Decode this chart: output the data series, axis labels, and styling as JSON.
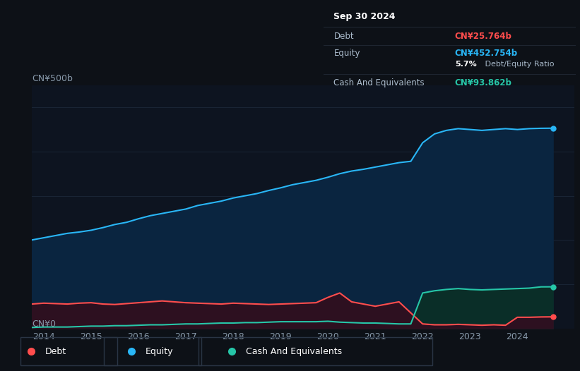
{
  "background_color": "#0d1117",
  "plot_bg_color": "#0d1420",
  "title_box": {
    "date": "Sep 30 2024",
    "debt_label": "Debt",
    "debt_value": "CN¥25.764b",
    "equity_label": "Equity",
    "equity_value": "CN¥452.754b",
    "ratio_bold": "5.7%",
    "ratio_normal": " Debt/Equity Ratio",
    "cash_label": "Cash And Equivalents",
    "cash_value": "CN¥93.862b",
    "debt_color": "#ff4d4d",
    "equity_color": "#29b6f6",
    "cash_color": "#26c6a8",
    "text_color": "#aabbcc",
    "white": "#ffffff"
  },
  "ylabel_text": "CN¥500b",
  "y0_text": "CN¥0",
  "x_ticks": [
    2014,
    2015,
    2016,
    2017,
    2018,
    2019,
    2020,
    2021,
    2022,
    2023,
    2024
  ],
  "years": [
    2013.75,
    2014.0,
    2014.25,
    2014.5,
    2014.75,
    2015.0,
    2015.25,
    2015.5,
    2015.75,
    2016.0,
    2016.25,
    2016.5,
    2016.75,
    2017.0,
    2017.25,
    2017.5,
    2017.75,
    2018.0,
    2018.25,
    2018.5,
    2018.75,
    2019.0,
    2019.25,
    2019.5,
    2019.75,
    2020.0,
    2020.25,
    2020.5,
    2020.75,
    2021.0,
    2021.25,
    2021.5,
    2021.75,
    2022.0,
    2022.25,
    2022.5,
    2022.75,
    2023.0,
    2023.25,
    2023.5,
    2023.75,
    2024.0,
    2024.25,
    2024.5,
    2024.75
  ],
  "equity": [
    200,
    205,
    210,
    215,
    218,
    222,
    228,
    235,
    240,
    248,
    255,
    260,
    265,
    270,
    278,
    283,
    288,
    295,
    300,
    305,
    312,
    318,
    325,
    330,
    335,
    342,
    350,
    356,
    360,
    365,
    370,
    375,
    378,
    420,
    440,
    448,
    452,
    450,
    448,
    450,
    452,
    450,
    452,
    452.754,
    453
  ],
  "debt": [
    55,
    57,
    56,
    55,
    57,
    58,
    55,
    54,
    56,
    58,
    60,
    62,
    60,
    58,
    57,
    56,
    55,
    57,
    56,
    55,
    54,
    55,
    56,
    57,
    58,
    70,
    80,
    60,
    55,
    50,
    55,
    60,
    35,
    10,
    8,
    8,
    9,
    8,
    7,
    8,
    7,
    25,
    25,
    25.764,
    26
  ],
  "cash": [
    2,
    3,
    3,
    3,
    4,
    5,
    5,
    6,
    6,
    7,
    8,
    8,
    9,
    10,
    10,
    11,
    12,
    12,
    13,
    13,
    14,
    15,
    15,
    15,
    15,
    16,
    14,
    13,
    12,
    12,
    11,
    10,
    10,
    80,
    85,
    88,
    90,
    88,
    87,
    88,
    89,
    90,
    91,
    93.862,
    94
  ],
  "equity_line_color": "#29b6f6",
  "debt_line_color": "#ff4d4d",
  "cash_line_color": "#26c6a8",
  "equity_fill_color": "#0a2540",
  "debt_fill_color": "#2d1020",
  "cash_fill_color": "#0a2e28",
  "grid_color": "#1a2535",
  "text_color": "#8899aa",
  "ylim": [
    0,
    550
  ],
  "xlim": [
    2013.75,
    2025.2
  ]
}
